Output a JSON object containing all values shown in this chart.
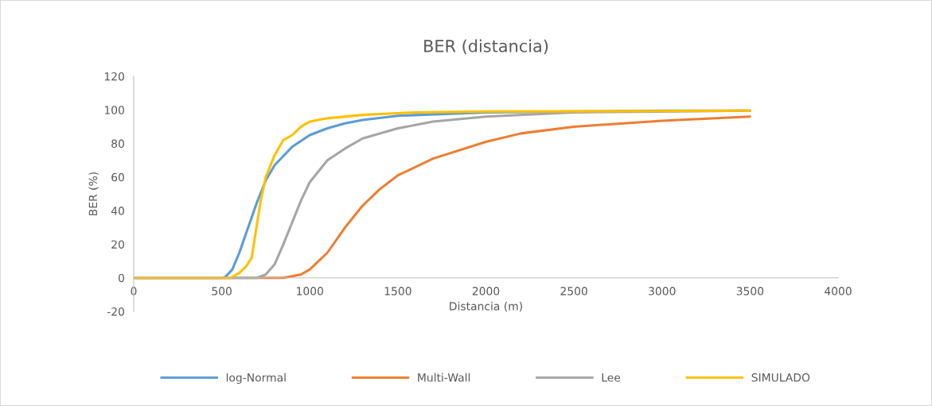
{
  "chart_data": {
    "type": "line",
    "title": "BER (distancia)",
    "xlabel": "Distancia (m)",
    "ylabel": "BER (%)",
    "xlim": [
      0,
      4000
    ],
    "xticks": [
      0,
      500,
      1000,
      1500,
      2000,
      2500,
      3000,
      3500,
      4000
    ],
    "ylim": [
      -20,
      120
    ],
    "yticks": [
      -20,
      0,
      20,
      40,
      60,
      80,
      100,
      120
    ],
    "grid": false,
    "legend": "bottom",
    "marker": "none",
    "line_style": "solid",
    "series": [
      {
        "name": "log-Normal",
        "color": "#5b9bd5",
        "x": [
          0,
          500,
          520,
          560,
          600,
          650,
          700,
          750,
          800,
          900,
          1000,
          1100,
          1200,
          1300,
          1500,
          2000,
          2500,
          3000,
          3500
        ],
        "values": [
          0,
          0,
          0.5,
          5,
          15,
          30,
          45,
          58,
          67,
          78,
          85,
          89,
          92,
          94,
          96.5,
          98.5,
          99,
          99.5,
          99.5
        ]
      },
      {
        "name": "Multi-Wall",
        "color": "#ed7d31",
        "x": [
          0,
          850,
          950,
          1000,
          1100,
          1200,
          1300,
          1400,
          1500,
          1700,
          2000,
          2200,
          2500,
          3000,
          3500
        ],
        "values": [
          0,
          0,
          2,
          5,
          15,
          30,
          43,
          53,
          61,
          71,
          81,
          86,
          90,
          93.5,
          96
        ]
      },
      {
        "name": "Lee",
        "color": "#a5a5a5",
        "x": [
          0,
          700,
          750,
          800,
          850,
          900,
          950,
          1000,
          1100,
          1200,
          1300,
          1500,
          1700,
          2000,
          2500,
          3000,
          3500
        ],
        "values": [
          0,
          0,
          2,
          8,
          20,
          33,
          46,
          57,
          70,
          77,
          83,
          89,
          93,
          96,
          98.5,
          99,
          99.5
        ]
      },
      {
        "name": "SIMULADO",
        "color": "#ffc000",
        "x": [
          0,
          550,
          600,
          640,
          670,
          700,
          720,
          750,
          800,
          850,
          900,
          950,
          1000,
          1100,
          1300,
          1600,
          2000,
          3500
        ],
        "values": [
          0,
          0,
          3,
          7,
          12,
          32,
          45,
          60,
          73,
          82,
          85,
          90,
          93,
          95,
          97,
          98.5,
          99,
          99.5
        ]
      }
    ]
  }
}
